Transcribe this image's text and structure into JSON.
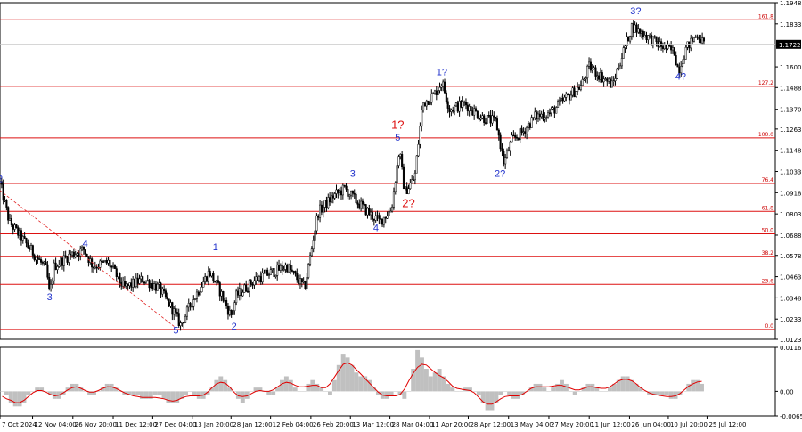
{
  "chart_data": [
    {
      "type": "candlestick",
      "ylim": [
        1.0123,
        1.1948
      ],
      "yticks": [
        "1.1948",
        "1.1833",
        "1.1718",
        "1.1600",
        "1.1488",
        "1.1370",
        "1.1263",
        "1.1148",
        "1.1033",
        "1.0918",
        "1.0803",
        "1.0688",
        "1.0578",
        "1.0463",
        "1.0348",
        "1.0233",
        "1.0123"
      ],
      "xticks": [
        "7 Oct 2024",
        "12 Nov 04:00",
        "26 Nov 20:00",
        "11 Dec 12:00",
        "27 Dec 04:00",
        "13 Jan 20:00",
        "28 Jan 12:00",
        "12 Feb 04:00",
        "26 Feb 20:00",
        "13 Mar 12:00",
        "28 Mar 04:00",
        "11 Apr 20:00",
        "28 Apr 12:00",
        "13 May 04:00",
        "27 May 20:00",
        "11 Jun 12:00",
        "26 Jun 04:00",
        "10 Jul 20:00",
        "25 Jul 12:00"
      ],
      "current_price": "1.1722",
      "price_path": [
        [
          0,
          1.097
        ],
        [
          0.012,
          1.076
        ],
        [
          0.03,
          1.066
        ],
        [
          0.06,
          1.05
        ],
        [
          0.064,
          1.036
        ],
        [
          0.07,
          1.052
        ],
        [
          0.09,
          1.058
        ],
        [
          0.108,
          1.061
        ],
        [
          0.12,
          1.052
        ],
        [
          0.14,
          1.054
        ],
        [
          0.16,
          1.04
        ],
        [
          0.185,
          1.045
        ],
        [
          0.205,
          1.04
        ],
        [
          0.222,
          1.029
        ],
        [
          0.233,
          1.02
        ],
        [
          0.248,
          1.033
        ],
        [
          0.27,
          1.049
        ],
        [
          0.282,
          1.04
        ],
        [
          0.298,
          1.025
        ],
        [
          0.305,
          1.036
        ],
        [
          0.33,
          1.045
        ],
        [
          0.37,
          1.052
        ],
        [
          0.393,
          1.04
        ],
        [
          0.41,
          1.081
        ],
        [
          0.43,
          1.09
        ],
        [
          0.445,
          1.094
        ],
        [
          0.46,
          1.087
        ],
        [
          0.478,
          1.08
        ],
        [
          0.49,
          1.076
        ],
        [
          0.505,
          1.083
        ],
        [
          0.515,
          1.115
        ],
        [
          0.522,
          1.092
        ],
        [
          0.535,
          1.1
        ],
        [
          0.545,
          1.14
        ],
        [
          0.56,
          1.145
        ],
        [
          0.57,
          1.152
        ],
        [
          0.58,
          1.137
        ],
        [
          0.6,
          1.14
        ],
        [
          0.62,
          1.133
        ],
        [
          0.64,
          1.13
        ],
        [
          0.65,
          1.108
        ],
        [
          0.66,
          1.12
        ],
        [
          0.675,
          1.125
        ],
        [
          0.69,
          1.133
        ],
        [
          0.71,
          1.135
        ],
        [
          0.73,
          1.143
        ],
        [
          0.75,
          1.15
        ],
        [
          0.76,
          1.16
        ],
        [
          0.775,
          1.155
        ],
        [
          0.79,
          1.15
        ],
        [
          0.8,
          1.163
        ],
        [
          0.815,
          1.182
        ],
        [
          0.83,
          1.178
        ],
        [
          0.85,
          1.172
        ],
        [
          0.87,
          1.168
        ],
        [
          0.875,
          1.158
        ],
        [
          0.885,
          1.17
        ],
        [
          0.9,
          1.178
        ],
        [
          0.908,
          1.172
        ]
      ],
      "fib_levels": [
        {
          "label": "161.8",
          "value": 1.1855
        },
        {
          "label": "127.2",
          "value": 1.1495
        },
        {
          "label": "100.0",
          "value": 1.1215
        },
        {
          "label": "76.4",
          "value": 1.0968
        },
        {
          "label": "61.8",
          "value": 1.0817
        },
        {
          "label": "50.0",
          "value": 1.0695
        },
        {
          "label": "38.2",
          "value": 1.0573
        },
        {
          "label": "23.6",
          "value": 1.0421
        },
        {
          "label": "0.0",
          "value": 1.0177
        }
      ],
      "wave_labels": [
        {
          "text": "2",
          "color": "blue",
          "x": 0.0,
          "y": 1.0975
        },
        {
          "text": "3",
          "color": "blue",
          "x": 0.064,
          "y": 1.0335
        },
        {
          "text": "4",
          "color": "blue",
          "x": 0.11,
          "y": 1.0625
        },
        {
          "text": "5",
          "color": "blue",
          "x": 0.227,
          "y": 1.0155
        },
        {
          "text": "1",
          "color": "blue",
          "x": 0.278,
          "y": 1.0605
        },
        {
          "text": "2",
          "color": "blue",
          "x": 0.302,
          "y": 1.0175
        },
        {
          "text": "3",
          "color": "blue",
          "x": 0.455,
          "y": 1.1005
        },
        {
          "text": "4",
          "color": "blue",
          "x": 0.485,
          "y": 1.071
        },
        {
          "text": "5",
          "color": "blue",
          "x": 0.513,
          "y": 1.12
        },
        {
          "text": "1?",
          "color": "red",
          "x": 0.513,
          "y": 1.1265
        },
        {
          "text": "2?",
          "color": "red",
          "x": 0.527,
          "y": 1.084
        },
        {
          "text": "1?",
          "color": "blue",
          "x": 0.57,
          "y": 1.1555
        },
        {
          "text": "2?",
          "color": "blue",
          "x": 0.645,
          "y": 1.1005
        },
        {
          "text": "3?",
          "color": "blue",
          "x": 0.82,
          "y": 1.1885
        },
        {
          "text": "4?",
          "color": "blue",
          "x": 0.878,
          "y": 1.153
        }
      ]
    },
    {
      "type": "oscillator",
      "ylim": [
        -0.00653,
        0.01168
      ],
      "yticks": [
        "0.01168",
        "0.00",
        "-0.00653"
      ],
      "histogram": [
        0.0,
        -0.001,
        -0.003,
        -0.004,
        -0.004,
        -0.003,
        -0.001,
        0.0,
        0.001,
        0.001,
        0.0,
        -0.001,
        -0.002,
        -0.002,
        -0.001,
        0.001,
        0.002,
        0.002,
        0.001,
        0.0,
        -0.001,
        -0.001,
        0.0,
        0.001,
        0.002,
        0.002,
        0.001,
        0.0,
        -0.001,
        -0.001,
        -0.001,
        -0.001,
        -0.002,
        -0.002,
        -0.002,
        -0.001,
        -0.001,
        -0.002,
        -0.003,
        -0.003,
        -0.003,
        -0.002,
        -0.001,
        0.0,
        -0.001,
        -0.002,
        -0.002,
        -0.001,
        0.001,
        0.003,
        0.004,
        0.003,
        0.001,
        0.0,
        -0.002,
        -0.003,
        -0.002,
        0.0,
        0.001,
        0.001,
        0.0,
        -0.001,
        -0.001,
        0.001,
        0.003,
        0.004,
        0.003,
        0.001,
        0.0,
        0.0,
        0.002,
        0.003,
        0.002,
        0.001,
        0.0,
        -0.001,
        0.003,
        0.007,
        0.01,
        0.009,
        0.007,
        0.005,
        0.004,
        0.004,
        0.003,
        0.001,
        -0.001,
        -0.002,
        -0.002,
        -0.001,
        0.0,
        -0.001,
        -0.002,
        0.0,
        0.006,
        0.011,
        0.009,
        0.006,
        0.004,
        0.005,
        0.006,
        0.004,
        0.002,
        0.001,
        0.0,
        0.0,
        0.001,
        0.001,
        0.0,
        -0.001,
        -0.003,
        -0.005,
        -0.005,
        -0.003,
        -0.001,
        0.0,
        -0.001,
        -0.002,
        -0.002,
        -0.001,
        0.0,
        0.001,
        0.002,
        0.002,
        0.001,
        0.0,
        0.001,
        0.002,
        0.003,
        0.002,
        0.0,
        -0.001,
        0.0,
        0.001,
        0.002,
        0.002,
        0.001,
        0.0,
        0.0,
        0.001,
        0.002,
        0.003,
        0.004,
        0.004,
        0.003,
        0.002,
        0.001,
        0.0,
        -0.001,
        -0.001,
        -0.001,
        -0.001,
        -0.001,
        -0.002,
        -0.002,
        -0.001,
        0.0,
        0.002,
        0.003,
        0.003,
        0.002
      ],
      "signal_color": "#e00000",
      "histogram_color": "#c0c0c0"
    }
  ]
}
